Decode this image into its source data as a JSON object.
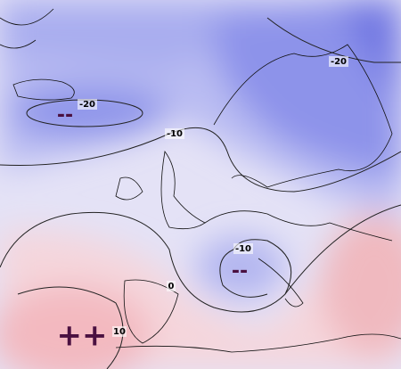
{
  "contour_labels": [
    "-20",
    "-20",
    "-10",
    "-10",
    "0",
    "10"
  ],
  "anomaly_markers": [
    "--",
    "--",
    "++"
  ]
}
